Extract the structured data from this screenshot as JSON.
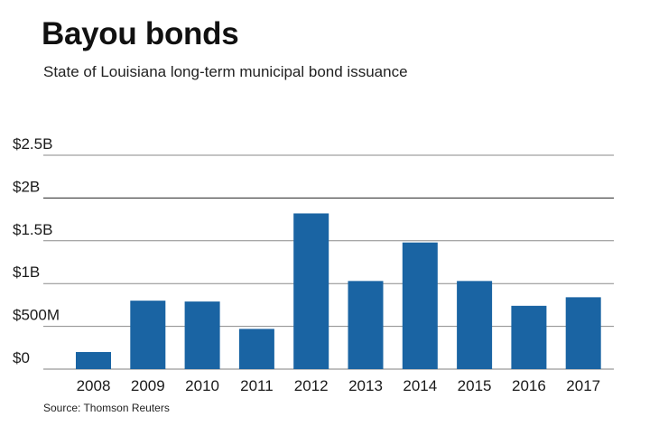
{
  "title": "Bayou bonds",
  "subtitle": "State of Louisiana long-term municipal bond issuance",
  "source": "Source: Thomson Reuters",
  "colors": {
    "bar": "#1a64a3",
    "grid": "#8a8a8a",
    "axis": "#999999",
    "text": "#1a1a1a"
  },
  "chart_data": {
    "type": "bar",
    "title": "Bayou bonds",
    "subtitle": "State of Louisiana long-term municipal bond issuance",
    "xlabel": "",
    "ylabel": "",
    "categories": [
      "2008",
      "2009",
      "2010",
      "2011",
      "2012",
      "2013",
      "2014",
      "2015",
      "2016",
      "2017"
    ],
    "values": [
      0.2,
      0.8,
      0.79,
      0.47,
      1.82,
      1.03,
      1.48,
      1.03,
      0.74,
      0.84
    ],
    "units": "billions of dollars",
    "ylim": [
      0,
      2.5
    ],
    "yticks": [
      0,
      0.5,
      1,
      1.5,
      2,
      2.5
    ],
    "ytick_labels": [
      "$0",
      "$500M",
      "$1B",
      "$1.5B",
      "$2B",
      "$2.5B"
    ],
    "grid": true
  }
}
